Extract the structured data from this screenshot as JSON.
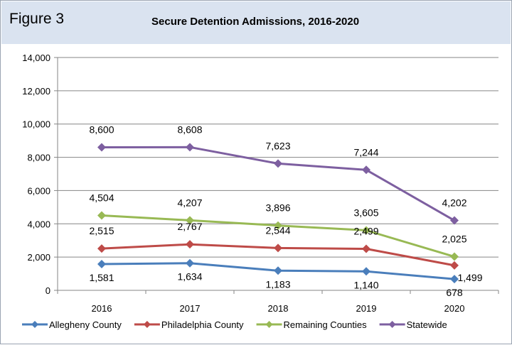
{
  "figure_label": "Figure 3",
  "chart_data": {
    "type": "line",
    "title": "Secure Detention Admissions, 2016-2020",
    "categories": [
      "2016",
      "2017",
      "2018",
      "2019",
      "2020"
    ],
    "ylim": [
      0,
      14000
    ],
    "yticks": [
      0,
      2000,
      4000,
      6000,
      8000,
      10000,
      12000,
      14000
    ],
    "ytick_labels": [
      "0",
      "2,000",
      "4,000",
      "6,000",
      "8,000",
      "10,000",
      "12,000",
      "14,000"
    ],
    "grid": true,
    "legend_position": "bottom",
    "series": [
      {
        "name": "Allegheny County",
        "color": "#4a7ebb",
        "values": [
          1581,
          1634,
          1183,
          1140,
          678
        ],
        "labels": [
          "1,581",
          "1,634",
          "1,183",
          "1,140",
          "678"
        ]
      },
      {
        "name": "Philadelphia County",
        "color": "#be4b48",
        "values": [
          2515,
          2767,
          2544,
          2499,
          1499
        ],
        "labels": [
          "2,515",
          "2,767",
          "2,544",
          "2,499",
          "1,499"
        ]
      },
      {
        "name": "Remaining Counties",
        "color": "#98b954",
        "values": [
          4504,
          4207,
          3896,
          3605,
          2025
        ],
        "labels": [
          "4,504",
          "4,207",
          "3,896",
          "3,605",
          "2,025"
        ]
      },
      {
        "name": "Statewide",
        "color": "#7d5fa0",
        "values": [
          8600,
          8608,
          7623,
          7244,
          4202
        ],
        "labels": [
          "8,600",
          "8,608",
          "7,623",
          "7,244",
          "4,202"
        ]
      }
    ]
  }
}
